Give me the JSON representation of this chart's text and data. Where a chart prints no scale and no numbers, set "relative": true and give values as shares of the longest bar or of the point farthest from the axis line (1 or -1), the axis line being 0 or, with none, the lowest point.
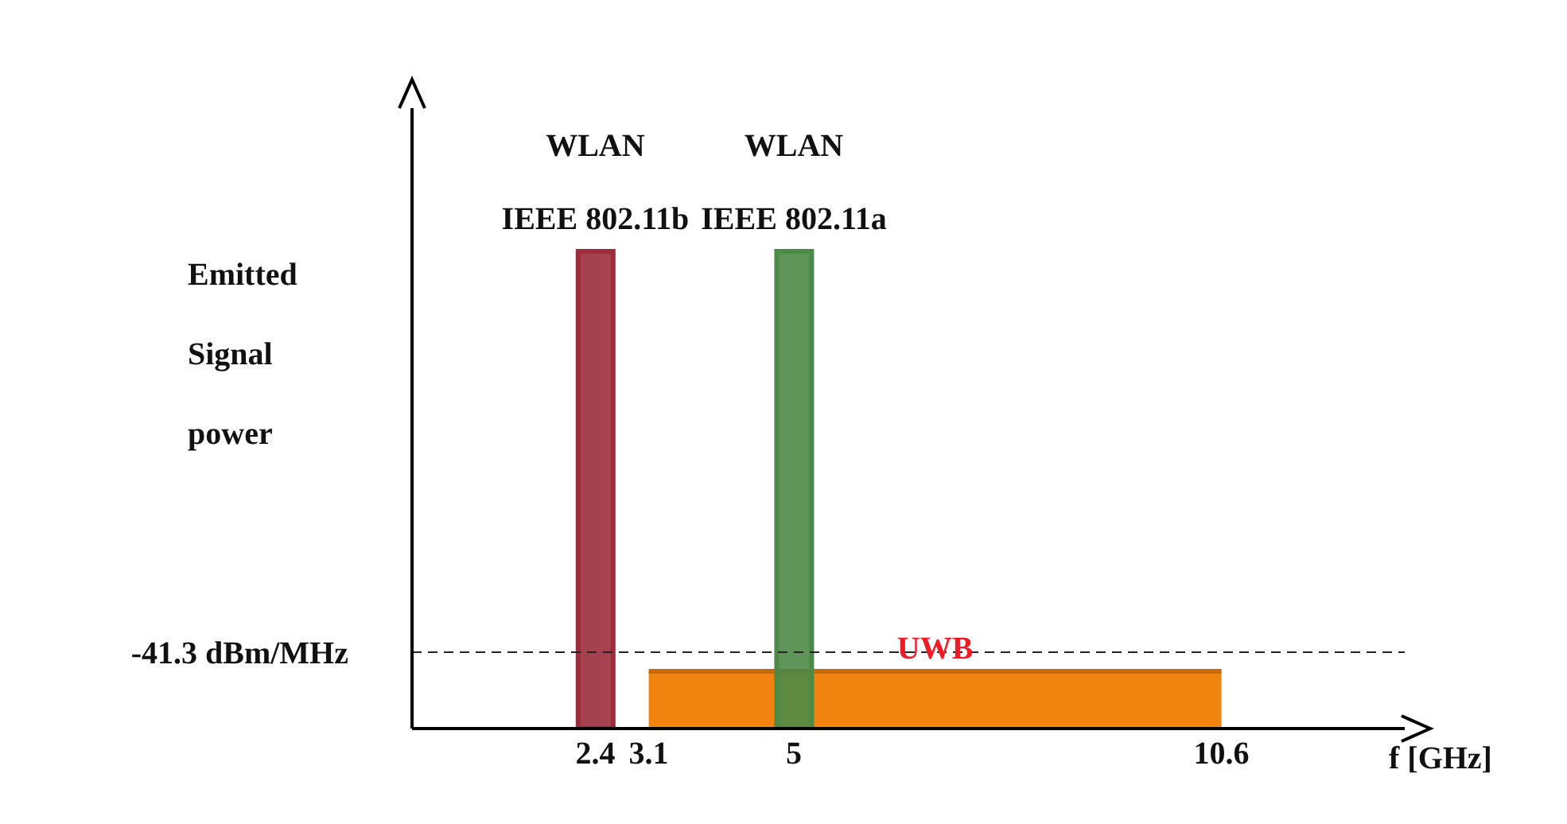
{
  "chart_data": {
    "type": "bar",
    "relative": true,
    "xlabel": "f [GHz]",
    "ylabel": "Emitted Signal power",
    "xlim": [
      0,
      13
    ],
    "xticks": [
      2.4,
      3.1,
      5,
      10.6
    ],
    "series": [
      {
        "name": "WLAN IEEE 802.11b",
        "color": "#9b2d3c",
        "x": [
          2.4
        ],
        "values": [
          1
        ]
      },
      {
        "name": "WLAN IEEE 802.11a",
        "color": "#4e8a47",
        "x": [
          5
        ],
        "values": [
          1
        ]
      },
      {
        "name": "UWB",
        "type": "area",
        "color": "#f0840e",
        "x": [
          3.1,
          10.6
        ],
        "values": [
          0.12,
          0.12
        ]
      }
    ],
    "ref_lines": [
      {
        "axis": "y",
        "value": 0.16,
        "label": "-41.3 dBm/MHz",
        "line_style": "dashed"
      }
    ],
    "grid": false,
    "legend": false
  }
}
